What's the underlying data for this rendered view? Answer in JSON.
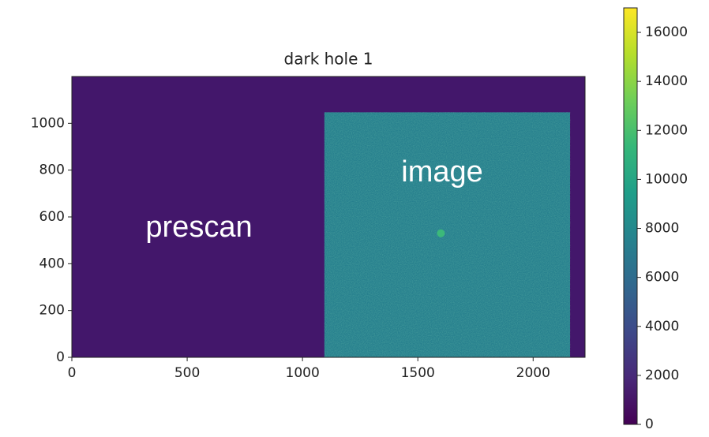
{
  "chart_data": {
    "type": "image",
    "title": "dark hole 1",
    "xlim": [
      0,
      2225
    ],
    "ylim": [
      0,
      1200
    ],
    "xticks": [
      0,
      500,
      1000,
      1500,
      2000
    ],
    "yticks": [
      0,
      200,
      400,
      600,
      800,
      1000
    ],
    "background": {
      "value": 1000,
      "color": "#43176b"
    },
    "regions": [
      {
        "x": [
          1095,
          2160
        ],
        "y": [
          0,
          1047
        ],
        "value": 9000,
        "color": "#27808e"
      }
    ],
    "spots": [
      {
        "x": 1600,
        "y": 530,
        "value": 11500,
        "color": "#3cb97a"
      }
    ],
    "annotations": [
      "prescan",
      "image"
    ],
    "colorbar": {
      "colormap": "viridis",
      "clim": [
        0,
        17000
      ],
      "ticks": [
        0,
        2000,
        4000,
        6000,
        8000,
        10000,
        12000,
        14000,
        16000
      ]
    }
  }
}
